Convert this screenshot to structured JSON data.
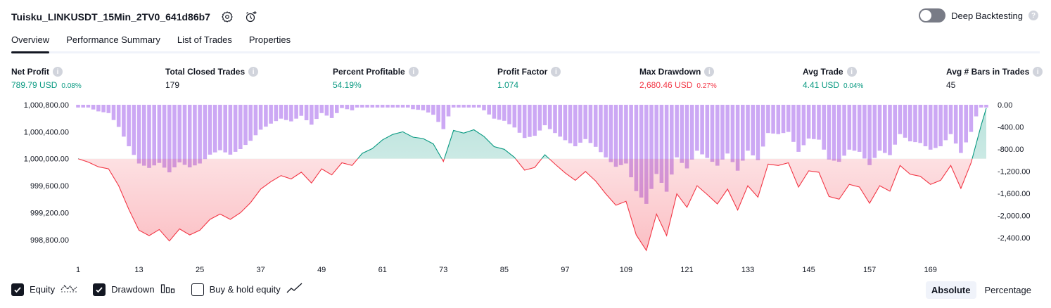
{
  "header": {
    "title": "Tuisku_LINKUSDT_15Min_2TV0_641d86b7",
    "deep_backtesting_label": "Deep Backtesting"
  },
  "tabs": [
    {
      "label": "Overview",
      "active": true
    },
    {
      "label": "Performance Summary",
      "active": false
    },
    {
      "label": "List of Trades",
      "active": false
    },
    {
      "label": "Properties",
      "active": false
    }
  ],
  "metrics": [
    {
      "label": "Net Profit",
      "value": "789.79 USD",
      "pct": "0.08%",
      "tone": "pos"
    },
    {
      "label": "Total Closed Trades",
      "value": "179",
      "pct": "",
      "tone": "neu"
    },
    {
      "label": "Percent Profitable",
      "value": "54.19%",
      "pct": "",
      "tone": "pos"
    },
    {
      "label": "Profit Factor",
      "value": "1.074",
      "pct": "",
      "tone": "pos"
    },
    {
      "label": "Max Drawdown",
      "value": "2,680.46 USD",
      "pct": "0.27%",
      "tone": "neg"
    },
    {
      "label": "Avg Trade",
      "value": "4.41 USD",
      "pct": "0.04%",
      "tone": "pos"
    },
    {
      "label": "Avg # Bars in Trades",
      "value": "45",
      "pct": "",
      "tone": "neu"
    }
  ],
  "chart_data": {
    "type": "area",
    "x_ticks": [
      "1",
      "13",
      "25",
      "37",
      "49",
      "61",
      "73",
      "85",
      "97",
      "109",
      "121",
      "133",
      "145",
      "157",
      "169"
    ],
    "y_left_ticks": [
      "1,000,800.00",
      "1,000,400.00",
      "1,000,000.00",
      "999,600.00",
      "999,200.00",
      "998,800.00"
    ],
    "y_right_ticks": [
      "0.00",
      "-400.00",
      "-800.00",
      "-1,200.00",
      "-1,600.00",
      "-2,000.00",
      "-2,400.00"
    ],
    "y_left_range": [
      998600,
      1000800
    ],
    "y_right_range": [
      -2680,
      0
    ],
    "baseline": 1000000,
    "x_range": [
      1,
      180
    ],
    "equity": [
      [
        1,
        1000000
      ],
      [
        3,
        999950
      ],
      [
        5,
        999880
      ],
      [
        7,
        999850
      ],
      [
        9,
        999600
      ],
      [
        11,
        999250
      ],
      [
        13,
        998940
      ],
      [
        15,
        998860
      ],
      [
        17,
        998950
      ],
      [
        19,
        998780
      ],
      [
        21,
        998960
      ],
      [
        23,
        998870
      ],
      [
        25,
        998940
      ],
      [
        27,
        999100
      ],
      [
        29,
        999180
      ],
      [
        31,
        999100
      ],
      [
        33,
        999200
      ],
      [
        35,
        999350
      ],
      [
        37,
        999550
      ],
      [
        39,
        999660
      ],
      [
        41,
        999750
      ],
      [
        43,
        999700
      ],
      [
        45,
        999800
      ],
      [
        47,
        999640
      ],
      [
        49,
        999850
      ],
      [
        51,
        999760
      ],
      [
        53,
        999940
      ],
      [
        55,
        999900
      ],
      [
        57,
        1000080
      ],
      [
        59,
        1000150
      ],
      [
        61,
        1000280
      ],
      [
        63,
        1000360
      ],
      [
        65,
        1000400
      ],
      [
        67,
        1000320
      ],
      [
        69,
        1000300
      ],
      [
        71,
        1000220
      ],
      [
        73,
        999960
      ],
      [
        75,
        1000420
      ],
      [
        77,
        1000380
      ],
      [
        79,
        1000430
      ],
      [
        81,
        1000330
      ],
      [
        83,
        1000180
      ],
      [
        85,
        1000140
      ],
      [
        87,
        1000020
      ],
      [
        89,
        999830
      ],
      [
        91,
        999870
      ],
      [
        93,
        1000060
      ],
      [
        95,
        999920
      ],
      [
        97,
        999790
      ],
      [
        99,
        999680
      ],
      [
        101,
        999810
      ],
      [
        103,
        999670
      ],
      [
        105,
        999480
      ],
      [
        107,
        999310
      ],
      [
        109,
        999370
      ],
      [
        111,
        998870
      ],
      [
        113,
        998640
      ],
      [
        115,
        999180
      ],
      [
        117,
        998860
      ],
      [
        119,
        999480
      ],
      [
        121,
        999280
      ],
      [
        123,
        999600
      ],
      [
        125,
        999470
      ],
      [
        127,
        999330
      ],
      [
        129,
        999550
      ],
      [
        131,
        999240
      ],
      [
        133,
        999600
      ],
      [
        135,
        999430
      ],
      [
        137,
        999920
      ],
      [
        139,
        999900
      ],
      [
        141,
        999940
      ],
      [
        143,
        999580
      ],
      [
        145,
        999820
      ],
      [
        147,
        999800
      ],
      [
        149,
        999440
      ],
      [
        151,
        999400
      ],
      [
        153,
        999620
      ],
      [
        155,
        999580
      ],
      [
        157,
        999340
      ],
      [
        159,
        999600
      ],
      [
        161,
        999520
      ],
      [
        163,
        999900
      ],
      [
        165,
        999770
      ],
      [
        167,
        999740
      ],
      [
        169,
        999620
      ],
      [
        171,
        999680
      ],
      [
        173,
        999900
      ],
      [
        175,
        999560
      ],
      [
        177,
        999940
      ],
      [
        179,
        1000500
      ],
      [
        180,
        1000750
      ]
    ]
  },
  "legend": {
    "equity_label": "Equity",
    "drawdown_label": "Drawdown",
    "buyhold_label": "Buy & hold equity"
  },
  "modes": {
    "absolute_label": "Absolute",
    "percentage_label": "Percentage"
  },
  "colors": {
    "equity_pos": "#089981",
    "equity_neg": "#f23645",
    "drawdown_bar": "#cca8f4",
    "text": "#131722"
  }
}
